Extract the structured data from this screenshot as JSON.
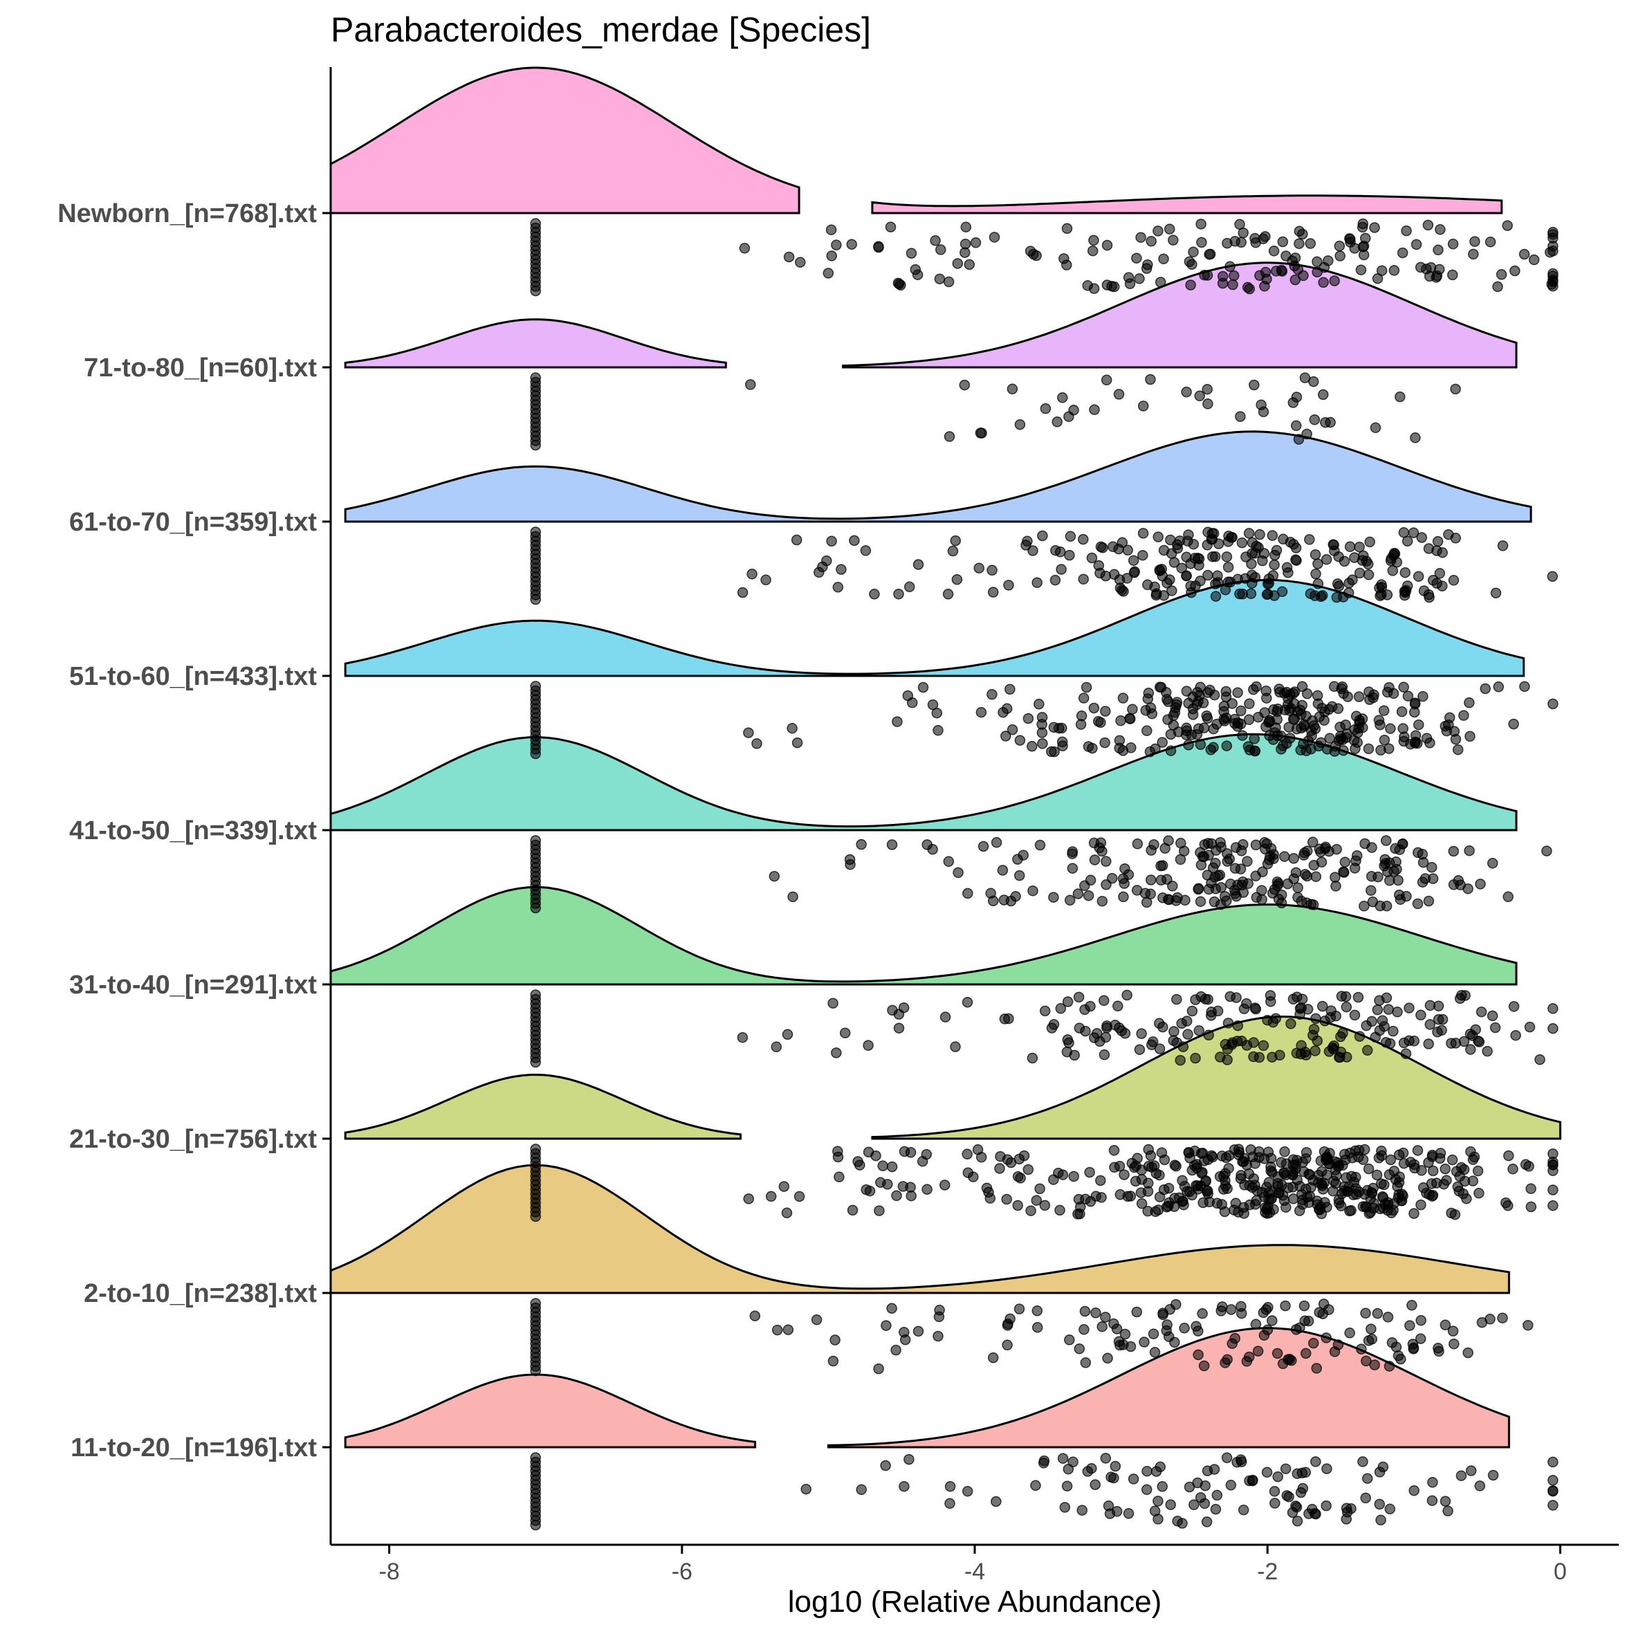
{
  "chart_data": {
    "type": "raincloud (half-violin density + jittered points)",
    "title": "Parabacteroides_merdae [Species]",
    "xlabel": "log10 (Relative Abundance)",
    "ylabel": "",
    "xlim": [
      -8.4,
      0.4
    ],
    "xticks": [
      -8,
      -6,
      -4,
      -2,
      0
    ],
    "xtick_labels": [
      "-8",
      "-6",
      "-4",
      "-2",
      "0"
    ],
    "grid": false,
    "legend": "none",
    "series": [
      {
        "name": "Newborn_[n=768].txt",
        "n": 768,
        "color": "#FF9FD6",
        "zero_mass_value": -7,
        "left_peak": 1.0,
        "right_peak": 0.12,
        "left_domain": [
          -8.4,
          -5.2
        ],
        "right_domain": [
          -4.7,
          -0.4
        ],
        "left_sd": 0.95,
        "right_mean": -1.7,
        "right_sd": 1.6,
        "nonzero_points": 160
      },
      {
        "name": "71-to-80_[n=60].txt",
        "n": 60,
        "color": "#E5A8F9",
        "zero_mass_value": -7,
        "left_peak": 0.33,
        "right_peak": 0.72,
        "left_domain": [
          -8.3,
          -5.7
        ],
        "right_domain": [
          -4.9,
          -0.3
        ],
        "left_sd": 0.6,
        "right_mean": -2.0,
        "right_sd": 1.0,
        "nonzero_points": 40
      },
      {
        "name": "61-to-70_[n=359].txt",
        "n": 359,
        "color": "#A1C4FA",
        "zero_mass_value": -7,
        "left_peak": 0.38,
        "right_peak": 0.62,
        "left_domain": [
          -8.3,
          -0.2
        ],
        "right_domain": null,
        "left_sd": 0.75,
        "right_mean": -2.1,
        "right_sd": 1.0,
        "nonzero_points": 230
      },
      {
        "name": "51-to-60_[n=433].txt",
        "n": 433,
        "color": "#6AD4EC",
        "zero_mass_value": -7,
        "left_peak": 0.38,
        "right_peak": 0.66,
        "left_domain": [
          -8.3,
          -0.25
        ],
        "right_domain": null,
        "left_sd": 0.75,
        "right_mean": -2.0,
        "right_sd": 0.95,
        "nonzero_points": 280
      },
      {
        "name": "41-to-50_[n=339].txt",
        "n": 339,
        "color": "#6FDAC7",
        "zero_mass_value": -7,
        "left_peak": 0.64,
        "right_peak": 0.66,
        "left_domain": [
          -8.4,
          -0.3
        ],
        "right_domain": null,
        "left_sd": 0.75,
        "right_mean": -2.1,
        "right_sd": 1.0,
        "nonzero_points": 220
      },
      {
        "name": "31-to-40_[n=291].txt",
        "n": 291,
        "color": "#77D88D",
        "zero_mass_value": -7,
        "left_peak": 0.67,
        "right_peak": 0.55,
        "left_domain": [
          -8.4,
          -0.3
        ],
        "right_domain": null,
        "left_sd": 0.7,
        "right_mean": -2.0,
        "right_sd": 1.05,
        "nonzero_points": 190
      },
      {
        "name": "21-to-30_[n=756].txt",
        "n": 756,
        "color": "#C3D270",
        "zero_mass_value": -7,
        "left_peak": 0.44,
        "right_peak": 0.84,
        "left_domain": [
          -8.3,
          -5.6
        ],
        "right_domain": [
          -4.7,
          0.0
        ],
        "left_sd": 0.6,
        "right_mean": -1.9,
        "right_sd": 0.95,
        "nonzero_points": 420
      },
      {
        "name": "2-to-10_[n=238].txt",
        "n": 238,
        "color": "#E5C16C",
        "zero_mass_value": -7,
        "left_peak": 0.88,
        "right_peak": 0.33,
        "left_domain": [
          -8.4,
          -0.35
        ],
        "right_domain": null,
        "left_sd": 0.75,
        "right_mean": -1.9,
        "right_sd": 1.2,
        "nonzero_points": 130
      },
      {
        "name": "11-to-20_[n=196].txt",
        "n": 196,
        "color": "#F9A6A3",
        "zero_mass_value": -7,
        "left_peak": 0.5,
        "right_peak": 0.82,
        "left_domain": [
          -8.3,
          -5.5
        ],
        "right_domain": [
          -5.0,
          -0.35
        ],
        "left_sd": 0.65,
        "right_mean": -2.0,
        "right_sd": 1.0,
        "nonzero_points": 110
      }
    ]
  }
}
